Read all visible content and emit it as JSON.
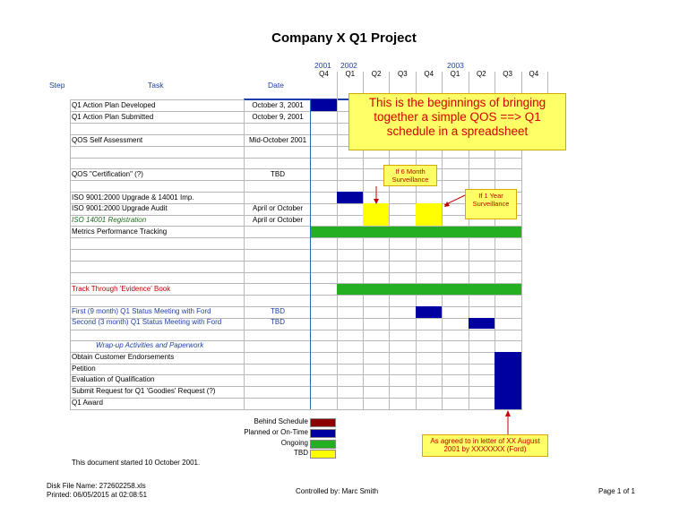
{
  "title": "Company X Q1 Project",
  "columns": {
    "step": "Step",
    "task": "Task",
    "date": "Date"
  },
  "years": [
    "2001",
    "2002",
    "2003"
  ],
  "quarters": [
    "Q4",
    "Q1",
    "Q2",
    "Q3",
    "Q4",
    "Q1",
    "Q2",
    "Q3",
    "Q4"
  ],
  "rows": [
    {
      "task": "Q1 Action Plan Developed",
      "date": "October 3, 2001"
    },
    {
      "task": "Q1 Action Plan Submitted",
      "date": "October 9, 2001"
    },
    {
      "task": "QOS Self Assessment",
      "date": "Mid-October 2001"
    },
    {
      "task": "QOS \"Certification\" (?)",
      "date": "TBD"
    },
    {
      "task": "ISO 9001:2000 Upgrade & 14001 Imp.",
      "date": ""
    },
    {
      "task": "ISO 9001:2000 Upgrade Audit",
      "date": "April or October"
    },
    {
      "task": "ISO 14001 Registration",
      "date": "April or October"
    },
    {
      "task": "Metrics Performance Tracking",
      "date": ""
    },
    {
      "task": "Track Through 'Evidence' Book",
      "date": ""
    },
    {
      "task": "First (9 month) Q1 Status Meeting with Ford",
      "date": "TBD"
    },
    {
      "task": "Second (3 month) Q1 Status Meeting with Ford",
      "date": "TBD"
    },
    {
      "task": "Wrap-up Activities and Paperwork",
      "date": ""
    },
    {
      "task": "Obtain Customer Endorsements",
      "date": ""
    },
    {
      "task": "Petition",
      "date": ""
    },
    {
      "task": "Evaluation of Qualification",
      "date": ""
    },
    {
      "task": "Submit Request for Q1 'Goodies' Request (?)",
      "date": ""
    },
    {
      "task": "Q1 Award",
      "date": ""
    }
  ],
  "callouts": {
    "main": "This is the beginnings of bringing together a simple QOS ==> Q1 schedule in a spreadsheet",
    "six_month": "If 6 Month Surveillance",
    "one_year": "If 1 Year Surveillance",
    "agreed": "As agreed to in letter of XX August 2001 by XXXXXXX (Ford)"
  },
  "legend": [
    {
      "label": "Behind Schedule",
      "color": "#8b0000"
    },
    {
      "label": "Planned or On-Time",
      "color": "#0000a0"
    },
    {
      "label": "Ongoing",
      "color": "#22b022"
    },
    {
      "label": "TBD",
      "color": "#ffff00"
    }
  ],
  "started": "This document started 10 October 2001.",
  "footer": {
    "disk": "Disk File Name:  272602258.xls",
    "printed": "Printed: 06/05/2015 at 02:08:51",
    "controlled": "Controlled by: Marc Smith",
    "page": "Page 1 of 1"
  }
}
